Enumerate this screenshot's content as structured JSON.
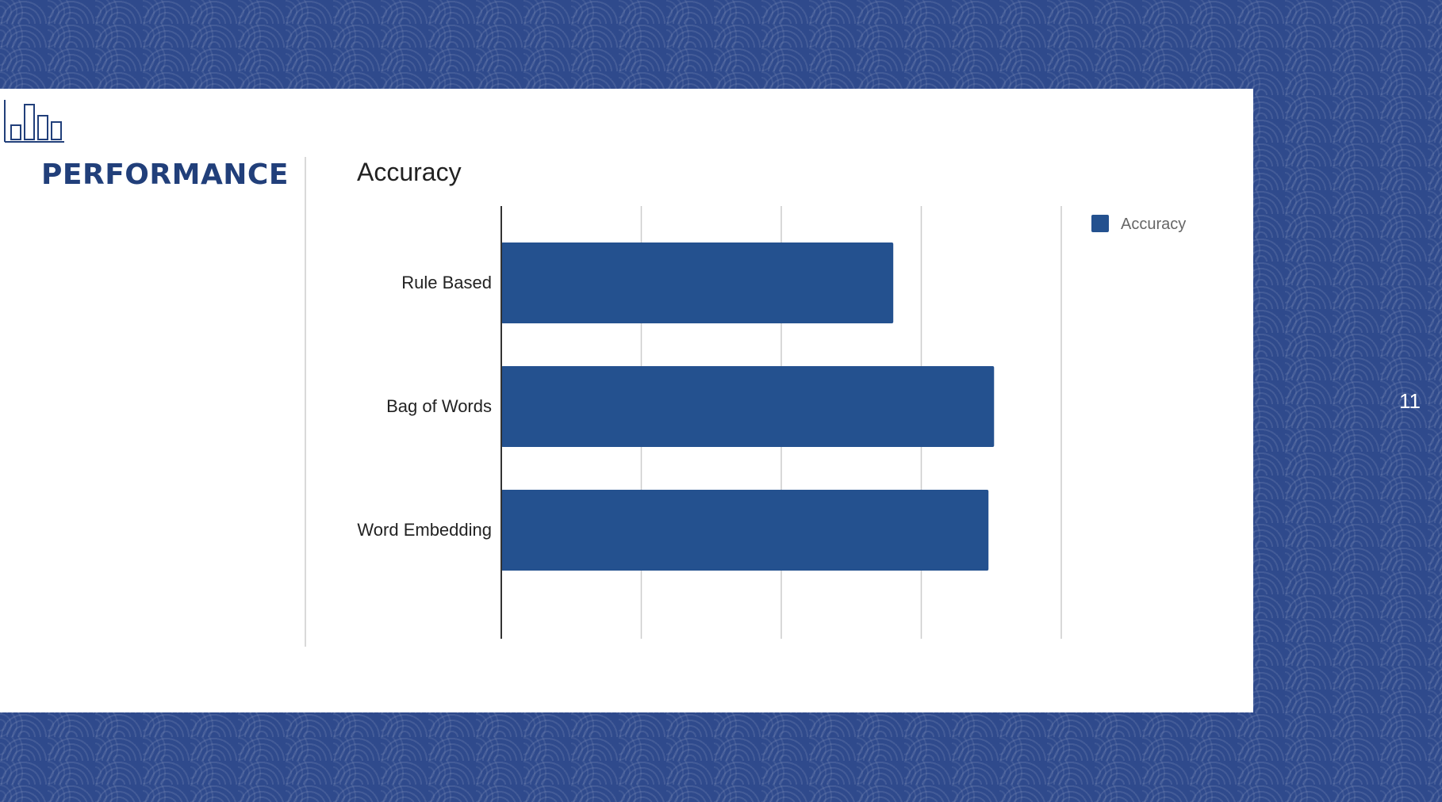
{
  "slide": {
    "title": "PERFORMANCE",
    "page_number": "11",
    "logo_icon": "bar-chart-icon"
  },
  "colors": {
    "accent": "#24518f",
    "title": "#213f7a",
    "background": "#2f4a8c"
  },
  "chart_data": {
    "type": "bar",
    "orientation": "horizontal",
    "title": "Accuracy",
    "categories": [
      "Rule Based",
      "Bag of Words",
      "Word Embedding"
    ],
    "series": [
      {
        "name": "Accuracy",
        "values": [
          70,
          88,
          87
        ]
      }
    ],
    "xlim": [
      0,
      100
    ],
    "xticks": [
      0,
      25,
      50,
      75,
      100
    ],
    "xlabel": "",
    "ylabel": "",
    "grid": true,
    "legend_position": "top-right"
  }
}
